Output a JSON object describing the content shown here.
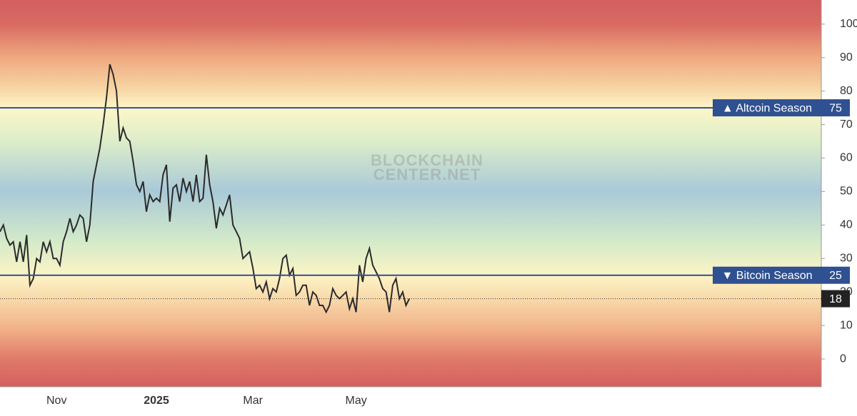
{
  "chart_data": {
    "type": "line",
    "watermark": [
      "BLOCKCHAIN",
      "CENTER.NET"
    ],
    "categories": [
      null,
      null,
      null,
      null,
      null,
      null,
      null,
      null,
      null,
      null,
      null,
      null,
      null,
      null,
      null,
      null,
      null,
      "Nov",
      null,
      null,
      null,
      null,
      null,
      null,
      null,
      null,
      null,
      null,
      null,
      null,
      null,
      null,
      null,
      null,
      null,
      null,
      null,
      null,
      null,
      null,
      null,
      null,
      null,
      null,
      null,
      null,
      null,
      "2025",
      null,
      null,
      null,
      null,
      null,
      null,
      null,
      null,
      null,
      null,
      null,
      null,
      null,
      null,
      null,
      null,
      null,
      null,
      null,
      null,
      null,
      null,
      null,
      null,
      null,
      null,
      null,
      null,
      "Mar",
      null,
      null,
      null,
      null,
      null,
      null,
      null,
      null,
      null,
      null,
      null,
      null,
      null,
      null,
      null,
      null,
      null,
      null,
      null,
      null,
      null,
      null,
      null,
      null,
      null,
      null,
      null,
      null,
      null,
      null,
      "May",
      null,
      null,
      null,
      null,
      null,
      null,
      null,
      null,
      null,
      null,
      null,
      null,
      null,
      null,
      null,
      null
    ],
    "values": [
      38,
      40,
      36,
      34,
      35,
      29,
      35,
      29,
      37,
      22,
      24,
      30,
      29,
      35,
      32,
      35,
      30,
      30,
      28,
      35,
      38,
      42,
      38,
      40,
      43,
      42,
      35,
      40,
      53,
      58,
      63,
      70,
      78,
      88,
      85,
      80,
      65,
      69,
      66,
      65,
      59,
      52,
      50,
      53,
      44,
      49,
      47,
      48,
      47,
      55,
      58,
      41,
      51,
      52,
      47,
      54,
      50,
      53,
      47,
      55,
      47,
      48,
      61,
      52,
      47,
      39,
      45,
      43,
      46,
      49,
      40,
      38,
      36,
      30,
      31,
      32,
      27,
      21,
      22,
      20,
      23,
      18,
      21,
      20,
      24,
      30,
      31,
      25,
      27,
      19,
      20,
      22,
      22,
      16,
      20,
      19,
      16,
      16,
      14,
      16,
      21,
      19,
      18,
      19,
      20,
      15,
      18,
      14,
      28,
      23,
      30,
      33,
      28,
      26,
      24,
      21,
      20,
      14,
      22,
      24,
      18,
      20,
      16,
      18
    ],
    "color": "#2b2b2b",
    "ylim": [
      -8.3,
      107.2
    ],
    "yticks": [
      0,
      10,
      20,
      30,
      40,
      50,
      60,
      70,
      80,
      90,
      100
    ],
    "reference_lines": [
      {
        "value": 75,
        "label": "▲ Altcoin Season",
        "color": "#2f5091"
      },
      {
        "value": 25,
        "label": "▼ Bitcoin Season",
        "color": "#2f5091"
      }
    ],
    "current": {
      "value": 18,
      "color": "#222222"
    }
  }
}
